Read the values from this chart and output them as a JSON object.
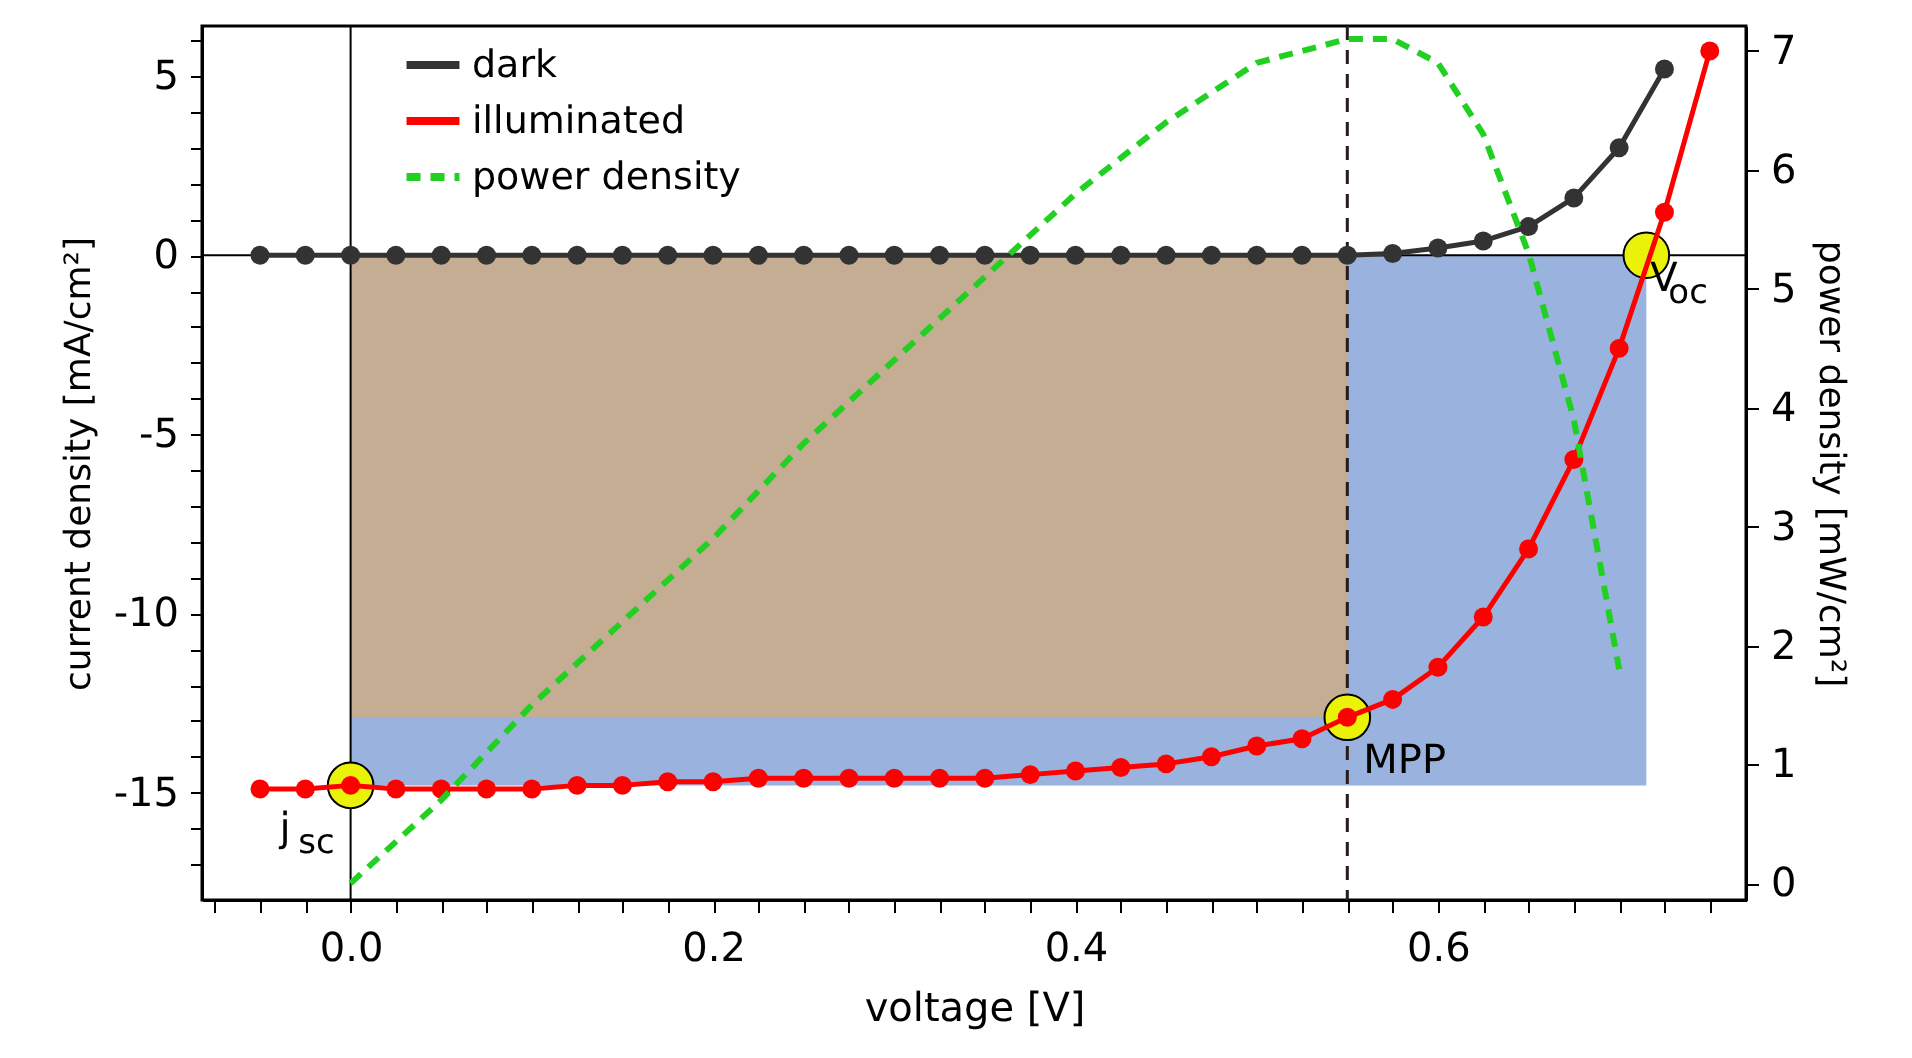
{
  "chart_data": {
    "type": "line",
    "xlabel": "voltage  [V]",
    "ylabel": "current density  [mA/cm²]",
    "y2label": "power density [mW/cm²]",
    "xlim": [
      -0.082,
      0.77
    ],
    "ylim": [
      -18,
      6.4
    ],
    "y2lim": [
      -0.14,
      7.21
    ],
    "xticks": [
      {
        "value": 0,
        "label": "0.0"
      },
      0.2,
      0.4,
      0.6,
      {
        "value": -0.075,
        "label": null
      },
      {
        "value": -0.05,
        "label": null
      },
      {
        "value": -0.025,
        "label": null
      },
      {
        "value": 0.025,
        "label": null
      },
      {
        "value": 0.05,
        "label": null
      },
      {
        "value": 0.075,
        "label": null
      },
      {
        "value": 0.1,
        "label": null
      },
      {
        "value": 0.125,
        "label": null
      },
      {
        "value": 0.15,
        "label": null
      },
      {
        "value": 0.175,
        "label": null
      },
      {
        "value": 0.225,
        "label": null
      },
      {
        "value": 0.25,
        "label": null
      },
      {
        "value": 0.275,
        "label": null
      },
      {
        "value": 0.3,
        "label": null
      },
      {
        "value": 0.325,
        "label": null
      },
      {
        "value": 0.35,
        "label": null
      },
      {
        "value": 0.375,
        "label": null
      },
      {
        "value": 0.425,
        "label": null
      },
      {
        "value": 0.45,
        "label": null
      },
      {
        "value": 0.475,
        "label": null
      },
      {
        "value": 0.5,
        "label": null
      },
      {
        "value": 0.525,
        "label": null
      },
      {
        "value": 0.55,
        "label": null
      },
      {
        "value": 0.575,
        "label": null
      },
      {
        "value": 0.625,
        "label": null
      },
      {
        "value": 0.65,
        "label": null
      },
      {
        "value": 0.675,
        "label": null
      },
      {
        "value": 0.7,
        "label": null
      },
      {
        "value": 0.725,
        "label": null
      },
      {
        "value": 0.75,
        "label": null
      }
    ],
    "yticks": [
      -15,
      -10,
      -5,
      0,
      5,
      {
        "value": -17,
        "label": null
      },
      {
        "value": -16,
        "label": null
      },
      {
        "value": -14,
        "label": null
      },
      {
        "value": -13,
        "label": null
      },
      {
        "value": -12,
        "label": null
      },
      {
        "value": -11,
        "label": null
      },
      {
        "value": -9,
        "label": null
      },
      {
        "value": -8,
        "label": null
      },
      {
        "value": -7,
        "label": null
      },
      {
        "value": -6,
        "label": null
      },
      {
        "value": -4,
        "label": null
      },
      {
        "value": -3,
        "label": null
      },
      {
        "value": -2,
        "label": null
      },
      {
        "value": -1,
        "label": null
      },
      {
        "value": 1,
        "label": null
      },
      {
        "value": 2,
        "label": null
      },
      {
        "value": 3,
        "label": null
      },
      {
        "value": 4,
        "label": null
      },
      {
        "value": 6,
        "label": null
      }
    ],
    "y2ticks": [
      0,
      1,
      2,
      3,
      4,
      5,
      6,
      7
    ],
    "grid": false,
    "legend": "top left",
    "marker": "circle",
    "line_style": "solid",
    "series": [
      {
        "name": "dark",
        "color": "#333333",
        "x": [
          -0.05,
          -0.025,
          0,
          0.025,
          0.05,
          0.075,
          0.1,
          0.125,
          0.15,
          0.175,
          0.2,
          0.225,
          0.25,
          0.275,
          0.3,
          0.325,
          0.35,
          0.375,
          0.4,
          0.425,
          0.45,
          0.475,
          0.5,
          0.525,
          0.55,
          0.575,
          0.6,
          0.625,
          0.65,
          0.675,
          0.7,
          0.725
        ],
        "values": [
          0,
          0,
          0,
          0,
          0,
          0,
          0,
          0,
          0,
          0,
          0,
          0,
          0,
          0,
          0,
          0,
          0,
          0,
          0,
          0,
          0,
          0,
          0,
          0,
          0,
          0.05,
          0.2,
          0.4,
          0.8,
          1.6,
          3.0,
          5.2
        ]
      },
      {
        "name": "illuminated",
        "color": "#ff0000",
        "x": [
          -0.05,
          -0.025,
          0,
          0.025,
          0.05,
          0.075,
          0.1,
          0.125,
          0.15,
          0.175,
          0.2,
          0.225,
          0.25,
          0.275,
          0.3,
          0.325,
          0.35,
          0.375,
          0.4,
          0.425,
          0.45,
          0.475,
          0.5,
          0.525,
          0.55,
          0.575,
          0.6,
          0.625,
          0.65,
          0.675,
          0.7,
          0.725,
          0.75
        ],
        "values": [
          -14.9,
          -14.9,
          -14.8,
          -14.9,
          -14.9,
          -14.9,
          -14.9,
          -14.8,
          -14.8,
          -14.7,
          -14.7,
          -14.6,
          -14.6,
          -14.6,
          -14.6,
          -14.6,
          -14.6,
          -14.5,
          -14.4,
          -14.3,
          -14.2,
          -14.0,
          -13.7,
          -13.5,
          -12.9,
          -12.4,
          -11.5,
          -10.1,
          -8.2,
          -5.7,
          -2.6,
          1.2,
          5.7
        ]
      },
      {
        "name": "power density",
        "color": "#22d022",
        "axis": "y2",
        "marker": "none",
        "line_style": "dashed",
        "x": [
          0,
          0.05,
          0.1,
          0.15,
          0.2,
          0.25,
          0.3,
          0.35,
          0.4,
          0.45,
          0.5,
          0.55,
          0.575,
          0.6,
          0.625,
          0.65,
          0.675,
          0.7
        ],
        "values": [
          0,
          0.7,
          1.5,
          2.2,
          2.9,
          3.7,
          4.4,
          5.1,
          5.8,
          6.4,
          6.9,
          7.1,
          7.1,
          6.9,
          6.3,
          5.3,
          3.9,
          1.8
        ]
      }
    ],
    "annotations": [
      {
        "text": "j$_{sc}$",
        "x": 0,
        "y": -14.8
      },
      {
        "text": "MPP",
        "x": 0.55,
        "y": -12.9
      },
      {
        "text": "V$_{oc}$",
        "x": 0.715,
        "y": 0
      }
    ],
    "bands": [
      {
        "axis": "x",
        "from": 0,
        "to": 0.715,
        "color": "#9ab2de"
      },
      {
        "axis": "x",
        "from": 0,
        "to": 0.55,
        "color": "#c4ad93"
      }
    ],
    "ref_lines": [
      {
        "axis": "x",
        "value": 0,
        "color": "#000000",
        "line_style": "solid"
      },
      {
        "axis": "y",
        "value": 0,
        "color": "#000000",
        "line_style": "solid"
      },
      {
        "axis": "x",
        "value": 0.55,
        "color": "#2a1a1a",
        "line_style": "dashed"
      }
    ]
  }
}
